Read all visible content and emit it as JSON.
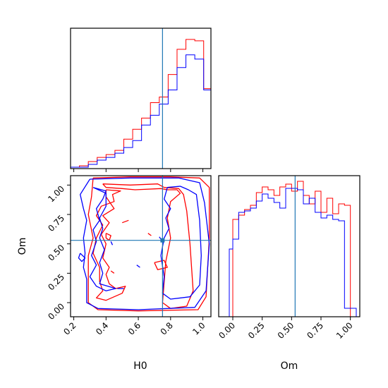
{
  "chart_data": {
    "type": "corner",
    "parameters": [
      "H0",
      "Om"
    ],
    "truths": {
      "H0": 0.75,
      "Om": 0.53
    },
    "colors": {
      "series_a": "#ff0000",
      "series_b": "#0000ff",
      "truth": "#1f77b4"
    },
    "axes": {
      "H0": {
        "range": [
          0.18,
          1.05
        ],
        "ticks": [
          0.2,
          0.4,
          0.6,
          0.8,
          1.0
        ],
        "tick_labels": [
          "0.2",
          "0.4",
          "0.6",
          "0.8",
          "1.0"
        ]
      },
      "Om": {
        "range": [
          -0.12,
          1.08
        ],
        "ticks": [
          0.0,
          0.25,
          0.5,
          0.75,
          1.0
        ],
        "tick_labels": [
          "0.00",
          "0.25",
          "0.50",
          "0.75",
          "1.00"
        ]
      }
    },
    "hist_H0": {
      "ylim": [
        0,
        1.0
      ],
      "edges": [
        0.18,
        0.235,
        0.29,
        0.345,
        0.4,
        0.455,
        0.51,
        0.565,
        0.62,
        0.675,
        0.73,
        0.785,
        0.84,
        0.895,
        0.95,
        1.005,
        1.05
      ],
      "series": [
        {
          "color": "red",
          "values": [
            0.01,
            0.02,
            0.05,
            0.08,
            0.1,
            0.13,
            0.21,
            0.28,
            0.36,
            0.47,
            0.51,
            0.67,
            0.85,
            0.92,
            0.91,
            0.57,
            0.04
          ]
        },
        {
          "color": "blue",
          "values": [
            0.01,
            0.01,
            0.03,
            0.06,
            0.08,
            0.11,
            0.15,
            0.2,
            0.31,
            0.38,
            0.46,
            0.56,
            0.72,
            0.81,
            0.78,
            0.56,
            0.04
          ]
        }
      ]
    },
    "hist_Om": {
      "ylim": [
        0,
        1.0
      ],
      "edges": [
        -0.03,
        0.0,
        0.05,
        0.1,
        0.15,
        0.2,
        0.25,
        0.3,
        0.35,
        0.4,
        0.45,
        0.5,
        0.55,
        0.6,
        0.65,
        0.7,
        0.75,
        0.8,
        0.85,
        0.9,
        0.95,
        1.0,
        1.05
      ],
      "series": [
        {
          "color": "red",
          "values": [
            0,
            0.69,
            0.72,
            0.76,
            0.79,
            0.88,
            0.92,
            0.9,
            0.86,
            0.92,
            0.94,
            0.89,
            0.96,
            0.86,
            0.8,
            0.89,
            0.74,
            0.84,
            0.73,
            0.8,
            0.79,
            0.0
          ]
        },
        {
          "color": "blue",
          "values": [
            0.48,
            0.55,
            0.74,
            0.75,
            0.77,
            0.82,
            0.87,
            0.84,
            0.81,
            0.77,
            0.91,
            0.91,
            0.9,
            0.8,
            0.84,
            0.74,
            0.7,
            0.72,
            0.69,
            0.68,
            0.06,
            0.06
          ]
        }
      ]
    },
    "contours": {
      "x": "H0",
      "y": "Om",
      "series": [
        {
          "color": "red",
          "paths": [
            [
              [
                0.32,
                1.06
              ],
              [
                0.55,
                1.07
              ],
              [
                0.8,
                1.07
              ],
              [
                0.98,
                1.06
              ],
              [
                1.04,
                0.98
              ],
              [
                1.04,
                0.55
              ],
              [
                1.02,
                0.05
              ],
              [
                0.97,
                -0.06
              ],
              [
                0.6,
                -0.07
              ],
              [
                0.35,
                -0.06
              ],
              [
                0.29,
                0.0
              ],
              [
                0.29,
                0.4
              ],
              [
                0.32,
                0.55
              ],
              [
                0.29,
                0.75
              ],
              [
                0.31,
                0.9
              ],
              [
                0.32,
                1.06
              ]
            ],
            [
              [
                0.38,
                1.01
              ],
              [
                0.55,
                1.0
              ],
              [
                0.72,
                1.01
              ],
              [
                0.76,
                0.98
              ],
              [
                0.85,
                0.97
              ],
              [
                0.88,
                0.92
              ],
              [
                0.9,
                0.78
              ],
              [
                0.92,
                0.5
              ],
              [
                0.94,
                0.1
              ],
              [
                0.9,
                -0.03
              ],
              [
                0.8,
                -0.05
              ],
              [
                0.75,
                0.0
              ],
              [
                0.77,
                0.35
              ],
              [
                0.8,
                0.55
              ],
              [
                0.78,
                0.72
              ],
              [
                0.8,
                0.86
              ],
              [
                0.86,
                0.93
              ],
              [
                0.84,
                0.96
              ],
              [
                0.78,
                0.96
              ],
              [
                0.74,
                0.97
              ],
              [
                0.58,
                0.96
              ],
              [
                0.5,
                0.97
              ],
              [
                0.4,
                0.98
              ],
              [
                0.38,
                1.01
              ]
            ],
            [
              [
                0.4,
                0.96
              ],
              [
                0.49,
                0.95
              ],
              [
                0.44,
                0.92
              ],
              [
                0.45,
                0.86
              ],
              [
                0.37,
                0.82
              ],
              [
                0.34,
                0.74
              ],
              [
                0.38,
                0.66
              ],
              [
                0.34,
                0.55
              ],
              [
                0.32,
                0.42
              ],
              [
                0.36,
                0.3
              ],
              [
                0.36,
                0.18
              ],
              [
                0.38,
                0.1
              ],
              [
                0.34,
                0.04
              ],
              [
                0.4,
                0.02
              ],
              [
                0.5,
                0.08
              ],
              [
                0.52,
                0.14
              ],
              [
                0.46,
                0.12
              ],
              [
                0.42,
                0.16
              ],
              [
                0.4,
                0.24
              ],
              [
                0.42,
                0.3
              ],
              [
                0.38,
                0.38
              ],
              [
                0.4,
                0.5
              ],
              [
                0.37,
                0.58
              ],
              [
                0.42,
                0.68
              ],
              [
                0.38,
                0.74
              ],
              [
                0.45,
                0.8
              ],
              [
                0.4,
                0.9
              ],
              [
                0.4,
                0.96
              ]
            ],
            [
              [
                0.4,
                0.59
              ],
              [
                0.43,
                0.57
              ],
              [
                0.42,
                0.53
              ],
              [
                0.4,
                0.55
              ],
              [
                0.4,
                0.59
              ]
            ],
            [
              [
                0.7,
                0.34
              ],
              [
                0.76,
                0.36
              ],
              [
                0.78,
                0.3
              ],
              [
                0.72,
                0.28
              ],
              [
                0.7,
                0.34
              ]
            ],
            [
              [
                0.66,
                0.59
              ],
              [
                0.68,
                0.57
              ]
            ],
            [
              [
                0.5,
                0.68
              ],
              [
                0.54,
                0.7
              ]
            ],
            [
              [
                0.43,
                0.27
              ],
              [
                0.45,
                0.25
              ]
            ]
          ]
        },
        {
          "color": "blue",
          "paths": [
            [
              [
                0.3,
                1.05
              ],
              [
                0.55,
                1.06
              ],
              [
                0.85,
                1.06
              ],
              [
                0.98,
                1.02
              ],
              [
                1.01,
                0.85
              ],
              [
                1.04,
                0.5
              ],
              [
                1.02,
                0.1
              ],
              [
                0.95,
                -0.04
              ],
              [
                0.6,
                -0.06
              ],
              [
                0.35,
                -0.05
              ],
              [
                0.28,
                0.0
              ],
              [
                0.28,
                0.2
              ],
              [
                0.26,
                0.3
              ],
              [
                0.27,
                0.42
              ],
              [
                0.26,
                0.55
              ],
              [
                0.28,
                0.7
              ],
              [
                0.26,
                0.8
              ],
              [
                0.24,
                0.92
              ],
              [
                0.3,
                1.05
              ]
            ],
            [
              [
                0.78,
                0.98
              ],
              [
                0.86,
                0.99
              ],
              [
                0.91,
                0.96
              ],
              [
                0.96,
                0.92
              ],
              [
                0.98,
                0.7
              ],
              [
                0.99,
                0.4
              ],
              [
                0.98,
                0.15
              ],
              [
                0.92,
                0.05
              ],
              [
                0.8,
                0.03
              ],
              [
                0.75,
                0.08
              ],
              [
                0.76,
                0.22
              ],
              [
                0.74,
                0.4
              ],
              [
                0.76,
                0.55
              ],
              [
                0.79,
                0.63
              ],
              [
                0.77,
                0.72
              ],
              [
                0.8,
                0.8
              ],
              [
                0.76,
                0.88
              ],
              [
                0.78,
                0.98
              ]
            ],
            [
              [
                0.32,
                0.98
              ],
              [
                0.4,
                0.95
              ],
              [
                0.38,
                0.88
              ],
              [
                0.34,
                0.8
              ],
              [
                0.36,
                0.7
              ],
              [
                0.32,
                0.62
              ],
              [
                0.34,
                0.52
              ],
              [
                0.31,
                0.4
              ],
              [
                0.34,
                0.32
              ],
              [
                0.3,
                0.22
              ],
              [
                0.34,
                0.14
              ],
              [
                0.4,
                0.1
              ],
              [
                0.46,
                0.12
              ],
              [
                0.36,
                0.16
              ],
              [
                0.38,
                0.25
              ],
              [
                0.36,
                0.34
              ],
              [
                0.39,
                0.45
              ],
              [
                0.36,
                0.55
              ],
              [
                0.38,
                0.63
              ],
              [
                0.36,
                0.72
              ],
              [
                0.4,
                0.82
              ],
              [
                0.4,
                0.93
              ],
              [
                0.32,
                0.98
              ]
            ],
            [
              [
                0.24,
                0.42
              ],
              [
                0.27,
                0.38
              ],
              [
                0.25,
                0.35
              ],
              [
                0.23,
                0.38
              ],
              [
                0.24,
                0.42
              ]
            ],
            [
              [
                0.43,
                0.52
              ],
              [
                0.44,
                0.49
              ]
            ],
            [
              [
                0.59,
                0.32
              ],
              [
                0.61,
                0.3
              ]
            ],
            [
              [
                0.73,
                0.56
              ],
              [
                0.75,
                0.52
              ]
            ],
            [
              [
                0.47,
                0.12
              ],
              [
                0.51,
                0.12
              ]
            ]
          ]
        }
      ]
    }
  }
}
